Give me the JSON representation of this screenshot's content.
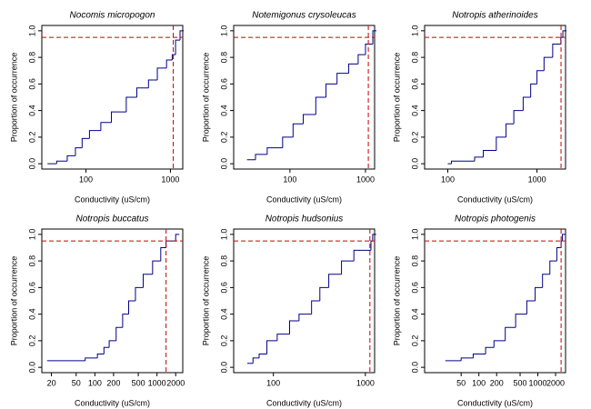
{
  "chart_data": [
    {
      "type": "step",
      "title": "Nocomis micropogon",
      "xlabel": "Conductivity (uS/cm)",
      "ylabel": "Proportion of occurrence",
      "log_x": true,
      "xlim": [
        30,
        1400
      ],
      "xticks": [
        100,
        1000
      ],
      "ylim": [
        -0.04,
        1.04
      ],
      "yticks": [
        {
          "value": 0,
          "label": "0.0"
        },
        {
          "value": 0.2,
          "label": "0.2"
        },
        {
          "value": 0.4,
          "label": "0.4"
        },
        {
          "value": 0.6,
          "label": "0.6"
        },
        {
          "value": 0.8,
          "label": "0.8"
        },
        {
          "value": 1,
          "label": "1.0"
        }
      ],
      "color": "#00008b",
      "ref_color": "#cc0000",
      "hline": 0.95,
      "vline": 1080,
      "x": [
        35,
        45,
        60,
        75,
        90,
        110,
        150,
        200,
        300,
        400,
        550,
        700,
        900,
        1050,
        1150,
        1300
      ],
      "values": [
        0,
        0.02,
        0.06,
        0.12,
        0.19,
        0.25,
        0.31,
        0.39,
        0.5,
        0.57,
        0.63,
        0.72,
        0.78,
        0.82,
        0.93,
        1.0
      ]
    },
    {
      "type": "step",
      "title": "Notemigonus crysoleucas",
      "xlabel": "Conductivity (uS/cm)",
      "ylabel": "Proportion of occurrence",
      "log_x": true,
      "xlim": [
        18,
        1320
      ],
      "xticks": [
        100,
        1000
      ],
      "ylim": [
        -0.04,
        1.04
      ],
      "yticks": [
        {
          "value": 0,
          "label": "0.0"
        },
        {
          "value": 0.2,
          "label": "0.2"
        },
        {
          "value": 0.4,
          "label": "0.4"
        },
        {
          "value": 0.6,
          "label": "0.6"
        },
        {
          "value": 0.8,
          "label": "0.8"
        },
        {
          "value": 1,
          "label": "1.0"
        }
      ],
      "color": "#00008b",
      "ref_color": "#cc0000",
      "hline": 0.95,
      "vline": 1090,
      "x": [
        27,
        35,
        50,
        80,
        110,
        150,
        220,
        300,
        420,
        600,
        800,
        1000,
        1250
      ],
      "values": [
        0.03,
        0.07,
        0.12,
        0.2,
        0.3,
        0.37,
        0.5,
        0.6,
        0.68,
        0.75,
        0.82,
        0.9,
        1.0
      ]
    },
    {
      "type": "step",
      "title": "Notropis atherinoides",
      "xlabel": "Conductivity (uS/cm)",
      "ylabel": "Proportion of occurrence",
      "log_x": true,
      "xlim": [
        55,
        2090
      ],
      "xticks": [
        100,
        1000
      ],
      "ylim": [
        -0.04,
        1.04
      ],
      "yticks": [
        {
          "value": 0,
          "label": "0.0"
        },
        {
          "value": 0.2,
          "label": "0.2"
        },
        {
          "value": 0.4,
          "label": "0.4"
        },
        {
          "value": 0.6,
          "label": "0.6"
        },
        {
          "value": 0.8,
          "label": "0.8"
        },
        {
          "value": 1,
          "label": "1.0"
        }
      ],
      "color": "#00008b",
      "ref_color": "#cc0000",
      "hline": 0.95,
      "vline": 1860,
      "x": [
        100,
        110,
        200,
        250,
        350,
        450,
        550,
        700,
        850,
        1000,
        1200,
        1500,
        1850,
        1950
      ],
      "values": [
        0,
        0.02,
        0.05,
        0.1,
        0.2,
        0.3,
        0.4,
        0.5,
        0.6,
        0.7,
        0.8,
        0.9,
        0.95,
        1.0
      ]
    },
    {
      "type": "step",
      "title": "Notropis buccatus",
      "xlabel": "Conductivity (uS/cm)",
      "ylabel": "Proportion of occurrence",
      "log_x": true,
      "xlim": [
        14,
        2600
      ],
      "xticks": [
        20,
        50,
        100,
        200,
        500,
        1000,
        2000
      ],
      "ylim": [
        -0.04,
        1.04
      ],
      "yticks": [
        {
          "value": 0,
          "label": "0.0"
        },
        {
          "value": 0.2,
          "label": "0.2"
        },
        {
          "value": 0.4,
          "label": "0.4"
        },
        {
          "value": 0.6,
          "label": "0.6"
        },
        {
          "value": 0.8,
          "label": "0.8"
        },
        {
          "value": 1,
          "label": "1.0"
        }
      ],
      "color": "#00008b",
      "ref_color": "#cc0000",
      "hline": 0.95,
      "vline": 1400,
      "x": [
        17,
        70,
        110,
        140,
        170,
        220,
        280,
        350,
        450,
        600,
        850,
        1150,
        1400,
        2000
      ],
      "values": [
        0.05,
        0.07,
        0.1,
        0.15,
        0.2,
        0.3,
        0.4,
        0.5,
        0.6,
        0.7,
        0.8,
        0.9,
        0.95,
        1.0
      ]
    },
    {
      "type": "step",
      "title": "Notropis hudsonius",
      "xlabel": "Conductivity (uS/cm)",
      "ylabel": "Proportion of occurrence",
      "log_x": true,
      "xlim": [
        37,
        1260
      ],
      "xticks": [
        100,
        1000
      ],
      "ylim": [
        -0.04,
        1.04
      ],
      "yticks": [
        {
          "value": 0,
          "label": "0.0"
        },
        {
          "value": 0.2,
          "label": "0.2"
        },
        {
          "value": 0.4,
          "label": "0.4"
        },
        {
          "value": 0.6,
          "label": "0.6"
        },
        {
          "value": 0.8,
          "label": "0.8"
        },
        {
          "value": 1,
          "label": "1.0"
        }
      ],
      "color": "#00008b",
      "ref_color": "#cc0000",
      "hline": 0.95,
      "vline": 1120,
      "x": [
        52,
        60,
        70,
        85,
        110,
        150,
        190,
        260,
        320,
        400,
        550,
        750,
        1150,
        1200
      ],
      "values": [
        0.03,
        0.07,
        0.1,
        0.2,
        0.25,
        0.35,
        0.4,
        0.5,
        0.6,
        0.7,
        0.8,
        0.88,
        0.95,
        1.0
      ]
    },
    {
      "type": "step",
      "title": "Notropis photogenis",
      "xlabel": "Conductivity (uS/cm)",
      "ylabel": "Proportion of occurrence",
      "log_x": true,
      "xlim": [
        12,
        2950
      ],
      "xticks": [
        50,
        100,
        200,
        500,
        1000,
        2000
      ],
      "ylim": [
        -0.04,
        1.04
      ],
      "yticks": [
        {
          "value": 0,
          "label": "0.0"
        },
        {
          "value": 0.2,
          "label": "0.2"
        },
        {
          "value": 0.4,
          "label": "0.4"
        },
        {
          "value": 0.6,
          "label": "0.6"
        },
        {
          "value": 0.8,
          "label": "0.8"
        },
        {
          "value": 1,
          "label": "1.0"
        }
      ],
      "color": "#00008b",
      "ref_color": "#cc0000",
      "hline": 0.95,
      "vline": 2480,
      "x": [
        27,
        50,
        80,
        130,
        180,
        280,
        420,
        650,
        900,
        1200,
        1600,
        2100,
        2480,
        2600
      ],
      "values": [
        0.05,
        0.07,
        0.1,
        0.15,
        0.2,
        0.3,
        0.4,
        0.5,
        0.6,
        0.7,
        0.8,
        0.9,
        0.95,
        1.0
      ]
    }
  ]
}
